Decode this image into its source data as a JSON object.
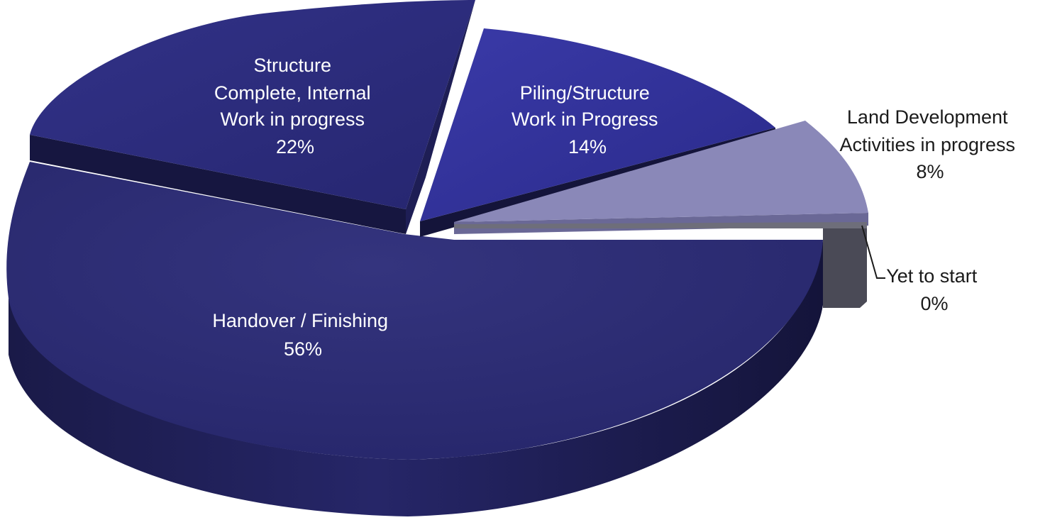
{
  "chart_data": {
    "type": "pie",
    "style": "3d-exploded",
    "title": "",
    "legend": "none",
    "slices": [
      {
        "label_lines": [
          "Handover / Finishing"
        ],
        "percent_label": "56%",
        "value": 56,
        "color": "#2d2d78"
      },
      {
        "label_lines": [
          "Structure",
          "Complete, Internal",
          "Work in progress"
        ],
        "percent_label": "22%",
        "value": 22,
        "color": "#2c2c7a"
      },
      {
        "label_lines": [
          "Piling/Structure",
          "Work in Progress"
        ],
        "percent_label": "14%",
        "value": 14,
        "color": "#33339a"
      },
      {
        "label_lines": [
          "Land Development",
          "Activities in progress"
        ],
        "percent_label": "8%",
        "value": 8,
        "color": "#8a88b8"
      },
      {
        "label_lines": [
          "Yet to start"
        ],
        "percent_label": "0%",
        "value": 0,
        "color": "#5a5a66"
      }
    ]
  }
}
